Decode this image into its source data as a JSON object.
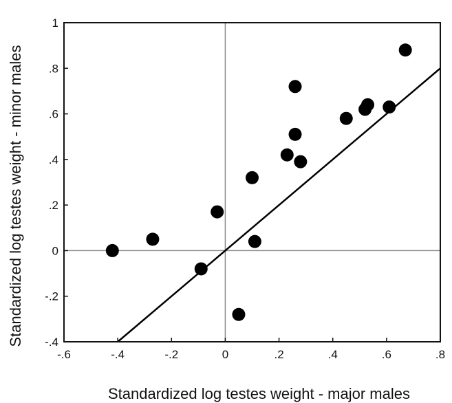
{
  "chart_data": {
    "type": "scatter",
    "title": "",
    "xlabel": "Standardized log testes weight  - major males",
    "ylabel": "Standardized log testes weight  - minor males",
    "xlim": [
      -0.6,
      0.8
    ],
    "ylim": [
      -0.4,
      1.0
    ],
    "x_ticks": [
      {
        "value": -0.6,
        "label": "-.6"
      },
      {
        "value": -0.4,
        "label": "-.4"
      },
      {
        "value": -0.2,
        "label": "-.2"
      },
      {
        "value": 0.0,
        "label": "0"
      },
      {
        "value": 0.2,
        "label": ".2"
      },
      {
        "value": 0.4,
        "label": ".4"
      },
      {
        "value": 0.6,
        "label": ".6"
      },
      {
        "value": 0.8,
        "label": ".8"
      }
    ],
    "y_ticks": [
      {
        "value": -0.4,
        "label": "-.4"
      },
      {
        "value": -0.2,
        "label": "-.2"
      },
      {
        "value": 0.0,
        "label": "0"
      },
      {
        "value": 0.2,
        "label": ".2"
      },
      {
        "value": 0.4,
        "label": ".4"
      },
      {
        "value": 0.6,
        "label": ".6"
      },
      {
        "value": 0.8,
        "label": ".8"
      },
      {
        "value": 1.0,
        "label": "1"
      }
    ],
    "grid": false,
    "reference_lines": {
      "x": 0,
      "y": 0
    },
    "points": [
      {
        "x": -0.42,
        "y": 0.0
      },
      {
        "x": -0.27,
        "y": 0.05
      },
      {
        "x": -0.09,
        "y": -0.08
      },
      {
        "x": -0.03,
        "y": 0.17
      },
      {
        "x": 0.05,
        "y": -0.28
      },
      {
        "x": 0.1,
        "y": 0.32
      },
      {
        "x": 0.11,
        "y": 0.04
      },
      {
        "x": 0.23,
        "y": 0.42
      },
      {
        "x": 0.26,
        "y": 0.72
      },
      {
        "x": 0.26,
        "y": 0.51
      },
      {
        "x": 0.28,
        "y": 0.39
      },
      {
        "x": 0.45,
        "y": 0.58
      },
      {
        "x": 0.52,
        "y": 0.62
      },
      {
        "x": 0.53,
        "y": 0.64
      },
      {
        "x": 0.61,
        "y": 0.63
      },
      {
        "x": 0.67,
        "y": 0.88
      }
    ],
    "reference_line": {
      "x1": -0.4,
      "y1": -0.4,
      "x2": 0.8,
      "y2": 0.8
    }
  }
}
